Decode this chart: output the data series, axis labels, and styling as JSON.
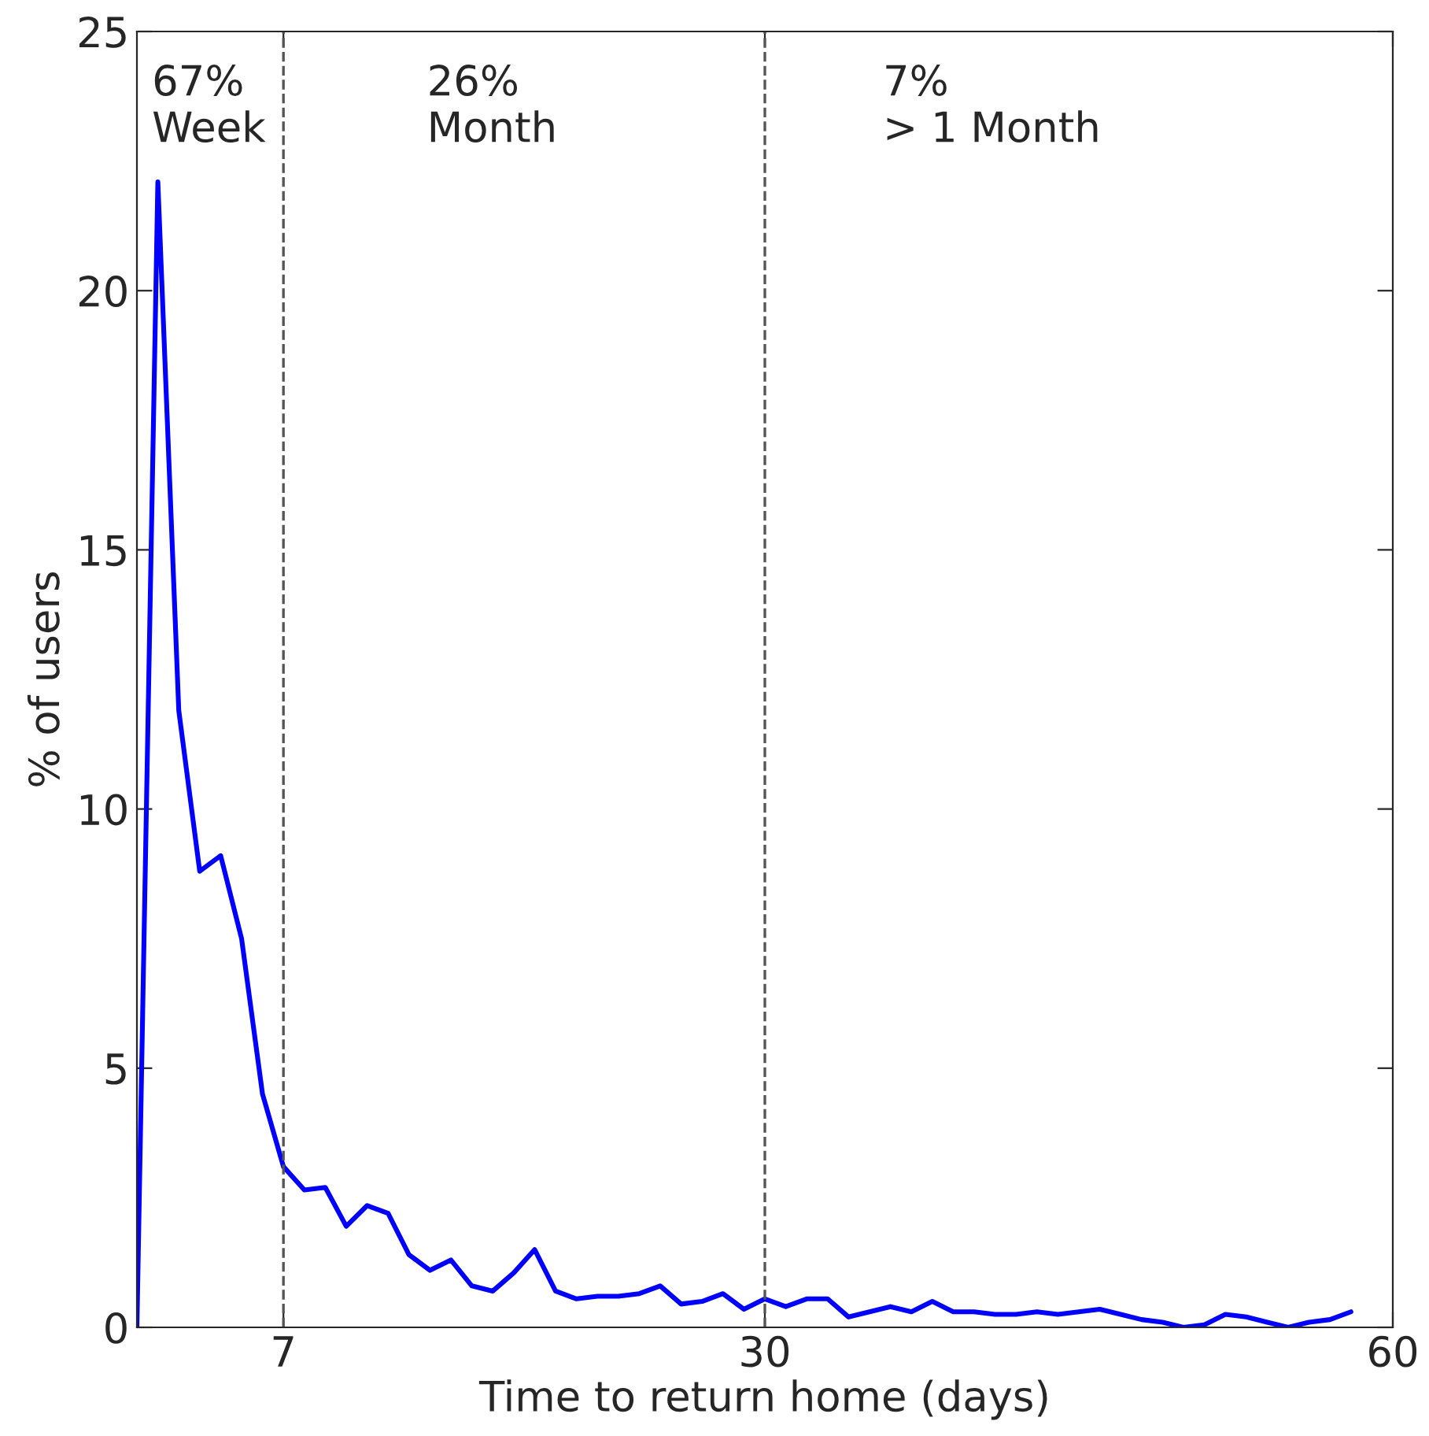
{
  "chart_data": {
    "type": "line",
    "xlabel": "Time to return home (days)",
    "ylabel": "% of users",
    "x": [
      0,
      1,
      2,
      3,
      4,
      5,
      6,
      7,
      8,
      9,
      10,
      11,
      12,
      13,
      14,
      15,
      16,
      17,
      18,
      19,
      20,
      21,
      22,
      23,
      24,
      25,
      26,
      27,
      28,
      29,
      30,
      31,
      32,
      33,
      34,
      35,
      36,
      37,
      38,
      39,
      40,
      41,
      42,
      43,
      44,
      45,
      46,
      47,
      48,
      49,
      50,
      51,
      52,
      53,
      54,
      55,
      56,
      57,
      58
    ],
    "series": [
      {
        "color": "#0000ff",
        "values": [
          0,
          22.1,
          11.9,
          8.8,
          9.1,
          7.5,
          4.5,
          3.1,
          2.65,
          2.7,
          1.95,
          2.35,
          2.2,
          1.4,
          1.1,
          1.3,
          0.8,
          0.7,
          1.05,
          1.5,
          0.7,
          0.55,
          0.6,
          0.6,
          0.65,
          0.8,
          0.45,
          0.5,
          0.65,
          0.35,
          0.55,
          0.4,
          0.55,
          0.55,
          0.2,
          0.3,
          0.4,
          0.3,
          0.5,
          0.3,
          0.3,
          0.25,
          0.25,
          0.3,
          0.25,
          0.3,
          0.35,
          0.25,
          0.15,
          0.1,
          0,
          0.05,
          0.25,
          0.2,
          0.1,
          0,
          0.1,
          0.15,
          0.3
        ]
      }
    ],
    "xlim": [
      0,
      60
    ],
    "ylim": [
      0,
      25
    ],
    "xticks": [
      7,
      30,
      60
    ],
    "yticks": [
      0,
      5,
      10,
      15,
      20,
      25
    ],
    "grid": false,
    "marker": "none",
    "line_style": "solid",
    "ref_lines": [
      {
        "axis": "x",
        "value": 7,
        "color": "#555555",
        "line_style": "dashed"
      },
      {
        "axis": "x",
        "value": 30,
        "color": "#555555",
        "line_style": "dashed"
      }
    ],
    "annotations": [
      "67%\nWeek",
      "26%\nMonth",
      "7%\n> 1 Month"
    ]
  }
}
